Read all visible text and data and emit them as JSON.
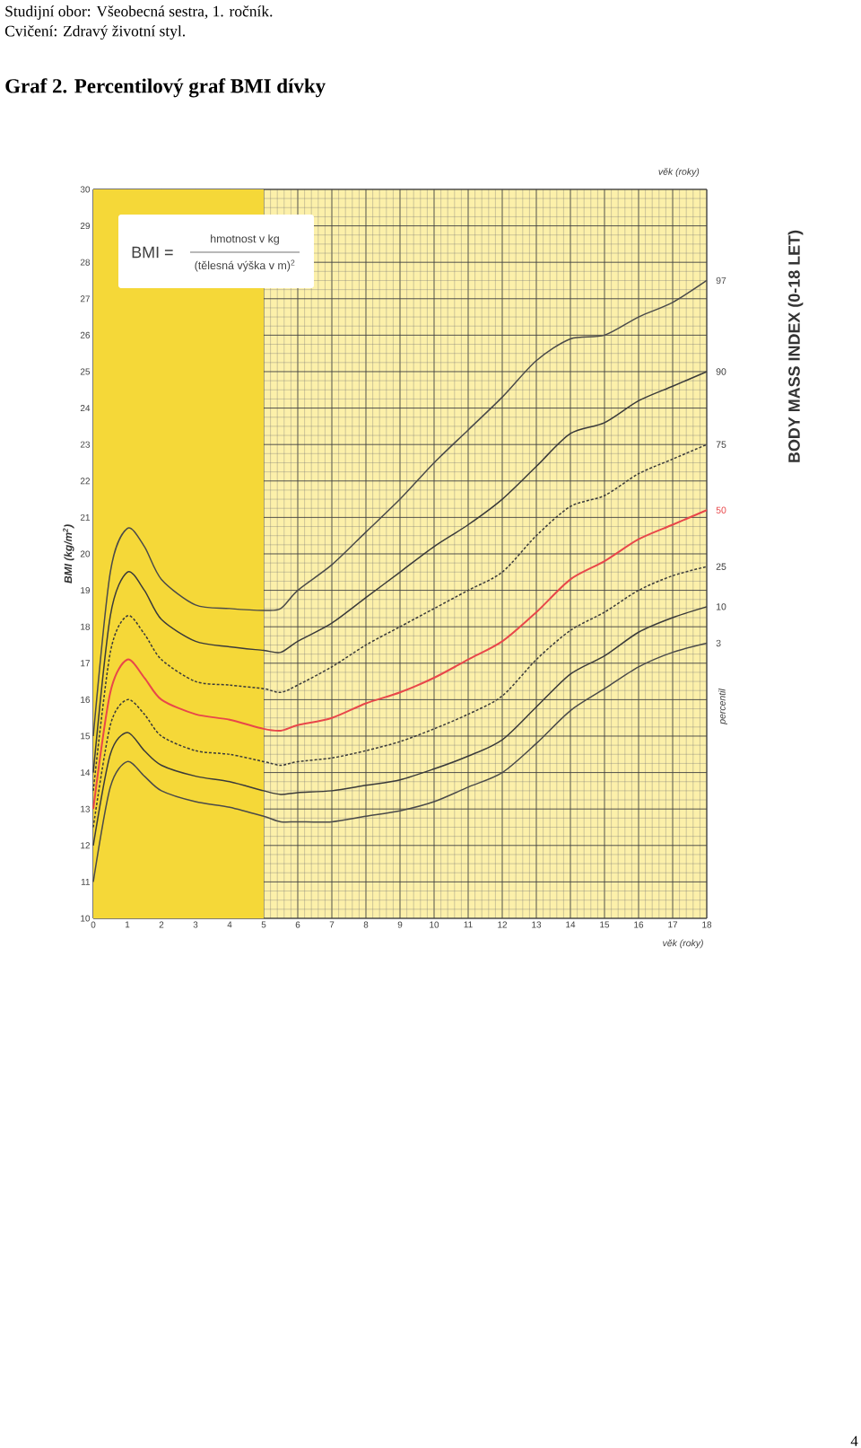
{
  "chart_data": {
    "type": "line",
    "title": "Graf  2. Percentilový graf BMI dívky",
    "subtitle": "BODY MASS INDEX (0-18 LET)",
    "xlabel": "věk (roky)",
    "ylabel": "BMI (kg/m$^{2}$)",
    "legend_title": "percentil",
    "annotations": [
      "Studijní obor: Všeobecná sestra, 1. ročník.",
      "Cvičení: Zdravý životní styl.",
      "BMI =",
      "hmotnost v kg",
      "(tělesná výška v m)$^{2}$",
      "věk (roky)",
      "4"
    ],
    "x": [
      0,
      0.5,
      1,
      1.5,
      2,
      3,
      4,
      5,
      5.5,
      6,
      7,
      8,
      9,
      10,
      11,
      12,
      13,
      14,
      15,
      16,
      17,
      18
    ],
    "xlim": [
      0,
      18
    ],
    "ylim": [
      10,
      30
    ],
    "xticks": [
      0,
      1,
      2,
      3,
      4,
      5,
      6,
      7,
      8,
      9,
      10,
      11,
      12,
      13,
      14,
      15,
      16,
      17,
      18
    ],
    "yticks": [
      10,
      11,
      12,
      13,
      14,
      15,
      16,
      17,
      18,
      19,
      20,
      21,
      22,
      23,
      24,
      25,
      26,
      27,
      28,
      29,
      30
    ],
    "grid": true,
    "bands": [
      {
        "axis": "x",
        "from": 0,
        "to": 5,
        "color": "#f5d838"
      }
    ],
    "series": [
      {
        "name": "97",
        "color": "#4a4a4a",
        "line_style": "solid",
        "values": [
          15.0,
          19.5,
          20.7,
          20.2,
          19.3,
          18.6,
          18.5,
          18.45,
          18.5,
          19.0,
          19.7,
          20.6,
          21.5,
          22.5,
          23.4,
          24.3,
          25.3,
          25.9,
          26.0,
          26.5,
          26.9,
          27.5
        ]
      },
      {
        "name": "90",
        "color": "#3a3a3a",
        "line_style": "solid",
        "values": [
          14.0,
          18.3,
          19.5,
          19.0,
          18.2,
          17.6,
          17.45,
          17.35,
          17.3,
          17.6,
          18.1,
          18.8,
          19.5,
          20.2,
          20.8,
          21.5,
          22.4,
          23.3,
          23.6,
          24.2,
          24.6,
          25.0
        ]
      },
      {
        "name": "75",
        "color": "#3a3a3a",
        "line_style": "dashed",
        "values": [
          13.5,
          17.3,
          18.3,
          17.8,
          17.1,
          16.5,
          16.4,
          16.3,
          16.2,
          16.4,
          16.9,
          17.5,
          18.0,
          18.5,
          19.0,
          19.5,
          20.5,
          21.3,
          21.6,
          22.2,
          22.6,
          23.0
        ]
      },
      {
        "name": "50",
        "color": "#e8474a",
        "line_style": "solid",
        "values": [
          13.0,
          16.2,
          17.1,
          16.6,
          16.0,
          15.6,
          15.45,
          15.2,
          15.15,
          15.3,
          15.5,
          15.9,
          16.2,
          16.6,
          17.1,
          17.6,
          18.4,
          19.3,
          19.8,
          20.4,
          20.8,
          21.2
        ]
      },
      {
        "name": "25",
        "color": "#3a3a3a",
        "line_style": "dashed",
        "values": [
          12.5,
          15.3,
          16.0,
          15.6,
          15.0,
          14.6,
          14.5,
          14.3,
          14.2,
          14.3,
          14.4,
          14.6,
          14.85,
          15.2,
          15.6,
          16.1,
          17.1,
          17.9,
          18.4,
          19.0,
          19.4,
          19.65
        ]
      },
      {
        "name": "10",
        "color": "#3a3a3a",
        "line_style": "solid",
        "values": [
          12.0,
          14.5,
          15.1,
          14.6,
          14.2,
          13.9,
          13.75,
          13.5,
          13.4,
          13.45,
          13.5,
          13.65,
          13.8,
          14.1,
          14.45,
          14.9,
          15.8,
          16.7,
          17.2,
          17.85,
          18.25,
          18.55
        ]
      },
      {
        "name": "3",
        "color": "#4a4a4a",
        "line_style": "solid",
        "values": [
          11.0,
          13.6,
          14.3,
          13.9,
          13.5,
          13.2,
          13.05,
          12.8,
          12.65,
          12.65,
          12.65,
          12.8,
          12.95,
          13.2,
          13.6,
          14.0,
          14.8,
          15.7,
          16.3,
          16.9,
          17.3,
          17.55
        ]
      }
    ]
  }
}
